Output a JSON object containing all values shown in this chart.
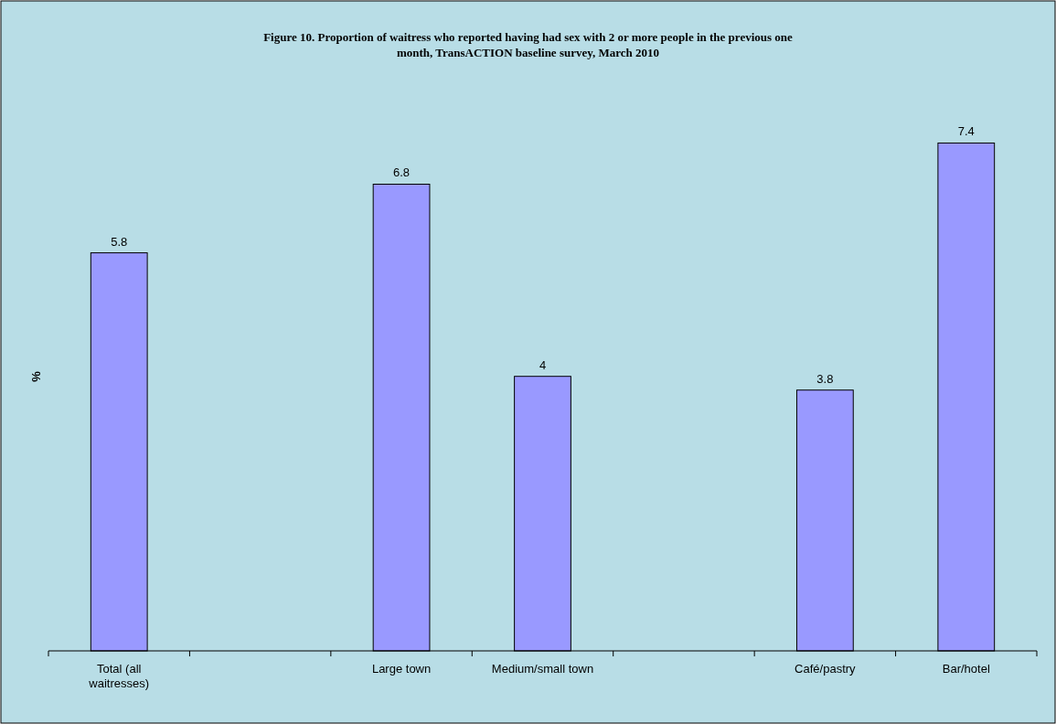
{
  "chart_data": {
    "type": "bar",
    "title": "Figure 10. Proportion of waitress who reported having had sex with 2 or more people in the previous one month, TransACTION baseline survey, March 2010",
    "ylabel": "%",
    "categories": [
      "Total (all waitresses)",
      null,
      "Large town",
      "Medium/small town",
      null,
      "Café/pastry",
      "Bar/hotel"
    ],
    "values": [
      5.8,
      null,
      6.8,
      4,
      null,
      3.8,
      7.4
    ],
    "color": "#9999ff",
    "data_labels": true
  }
}
